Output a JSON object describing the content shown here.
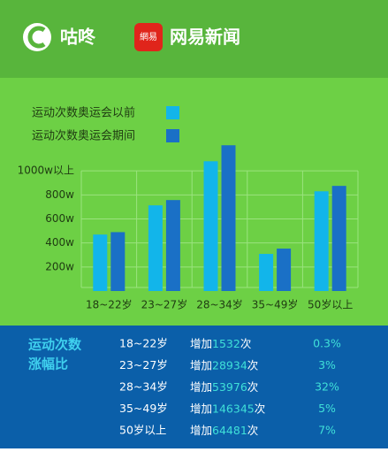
{
  "header": {
    "brand1": "咕咚",
    "brand2_mark": "網易",
    "brand2": "网易新闻"
  },
  "chart_data": {
    "type": "bar",
    "categories": [
      "18~22岁",
      "23~27岁",
      "28~34岁",
      "35~49岁",
      "50岁以上"
    ],
    "series": [
      {
        "name": "运动次数奥运会以前",
        "color": "#12b5ea",
        "values": [
          470,
          713,
          1080,
          309,
          830
        ]
      },
      {
        "name": "运动次数奥运会期间",
        "color": "#1a70c6",
        "values": [
          490,
          757,
          1213,
          353,
          875
        ]
      }
    ],
    "ylim": [
      0,
      1200
    ],
    "yticks": [
      {
        "value": 200,
        "label": "200w"
      },
      {
        "value": 400,
        "label": "400w"
      },
      {
        "value": 600,
        "label": "600w"
      },
      {
        "value": 800,
        "label": "800w"
      },
      {
        "value": 1000,
        "label": "1000w以上"
      }
    ],
    "grid": true
  },
  "table": {
    "title": [
      "运动次数",
      "涨幅比"
    ],
    "rows": [
      [
        "18~22岁",
        "增加",
        "1532",
        "次",
        "0.3%"
      ],
      [
        "23~27岁",
        "增加",
        "28934",
        "次",
        "3%"
      ],
      [
        "28~34岁",
        "增加",
        "53976",
        "次",
        "32%"
      ],
      [
        "35~49岁",
        "增加",
        "146345",
        "次",
        "5%"
      ],
      [
        "50岁以上",
        "增加",
        "64481",
        "次",
        "7%"
      ]
    ]
  }
}
